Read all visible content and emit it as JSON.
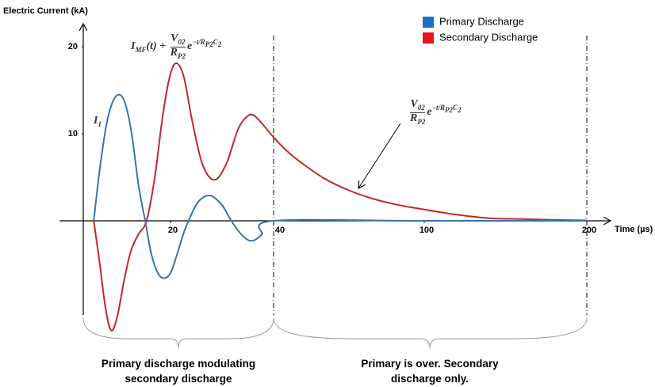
{
  "chart_data": {
    "type": "line",
    "y_label": "Electric Current (kA)",
    "x_label": "Time (µs)",
    "xlim": [
      0,
      200
    ],
    "xticks": [
      20,
      40,
      100,
      200
    ],
    "ylim": [
      -14,
      22
    ],
    "yticks": [
      10,
      20
    ],
    "markers": [
      40,
      200
    ],
    "legend": "top-right",
    "series": [
      {
        "name": "Primary Discharge",
        "color": "#3a73a8",
        "legend_color": "#1f6fc0",
        "x": [
          2.4,
          3.8,
          5.3,
          6.7,
          8.2,
          9.6,
          11.1,
          12.7,
          14.2,
          15.6,
          17.1,
          18.5,
          20,
          21.2,
          22.5,
          23.5,
          25.4,
          27.7,
          30,
          31.8,
          33.8,
          35.7,
          37.7,
          40,
          100,
          200
        ],
        "values": [
          0,
          6,
          11,
          13.6,
          14.5,
          13.5,
          10,
          4,
          0,
          -3.8,
          -6,
          -6.6,
          -6,
          -4,
          -1.5,
          0,
          2.2,
          2.9,
          1.8,
          0,
          -1.6,
          -2.3,
          -1.6,
          0,
          0,
          0
        ]
      },
      {
        "name": "Secondary Discharge",
        "color": "#c0282f",
        "legend_color": "#e8141c",
        "x": [
          2.4,
          3.8,
          5.1,
          6.4,
          7.8,
          9.3,
          10.9,
          12.7,
          14.5,
          16.4,
          18.2,
          19.8,
          21.1,
          22.6,
          24.2,
          26.2,
          28.5,
          30.8,
          33.1,
          34.9,
          36.2,
          38,
          40,
          45,
          50,
          60,
          70,
          80,
          90,
          100,
          120,
          140,
          160,
          180,
          200
        ],
        "values": [
          0,
          -5,
          -10,
          -12.6,
          -11,
          -7,
          -3.5,
          -1.5,
          0,
          5,
          12,
          16.5,
          18.1,
          16.5,
          11.5,
          6.5,
          4.7,
          6.5,
          10.5,
          12,
          12.1,
          11,
          9.6,
          8.1,
          6.9,
          4.9,
          3.5,
          2.5,
          1.8,
          1.3,
          0.7,
          0.3,
          0.2,
          0.1,
          0.05
        ]
      }
    ]
  },
  "annotations": {
    "formula_1": {
      "lead": "I",
      "lead_sub": "MF",
      "lead_rest": "(t) +",
      "num": "V",
      "num_sub": "02",
      "den": "R",
      "den_sub": "P2",
      "exp_base": "e",
      "exp": "−t",
      "exp_slash": "/",
      "exp_den": "R",
      "exp_den_sub": "P2",
      "exp_den2": "C",
      "exp_den2_sub": "2"
    },
    "formula_2": {
      "num": "V",
      "num_sub": "02",
      "den": "R",
      "den_sub": "P2",
      "exp_base": "e",
      "exp": "−t",
      "exp_slash": "/",
      "exp_den": "R",
      "exp_den_sub": "P2",
      "exp_den2": "C",
      "exp_den2_sub": "2"
    },
    "current_label": {
      "main": "I",
      "sub": "1"
    },
    "phase_1": [
      "Primary discharge modulating",
      "secondary discharge"
    ],
    "phase_2": [
      "Primary is over. Secondary",
      "discharge only."
    ]
  }
}
